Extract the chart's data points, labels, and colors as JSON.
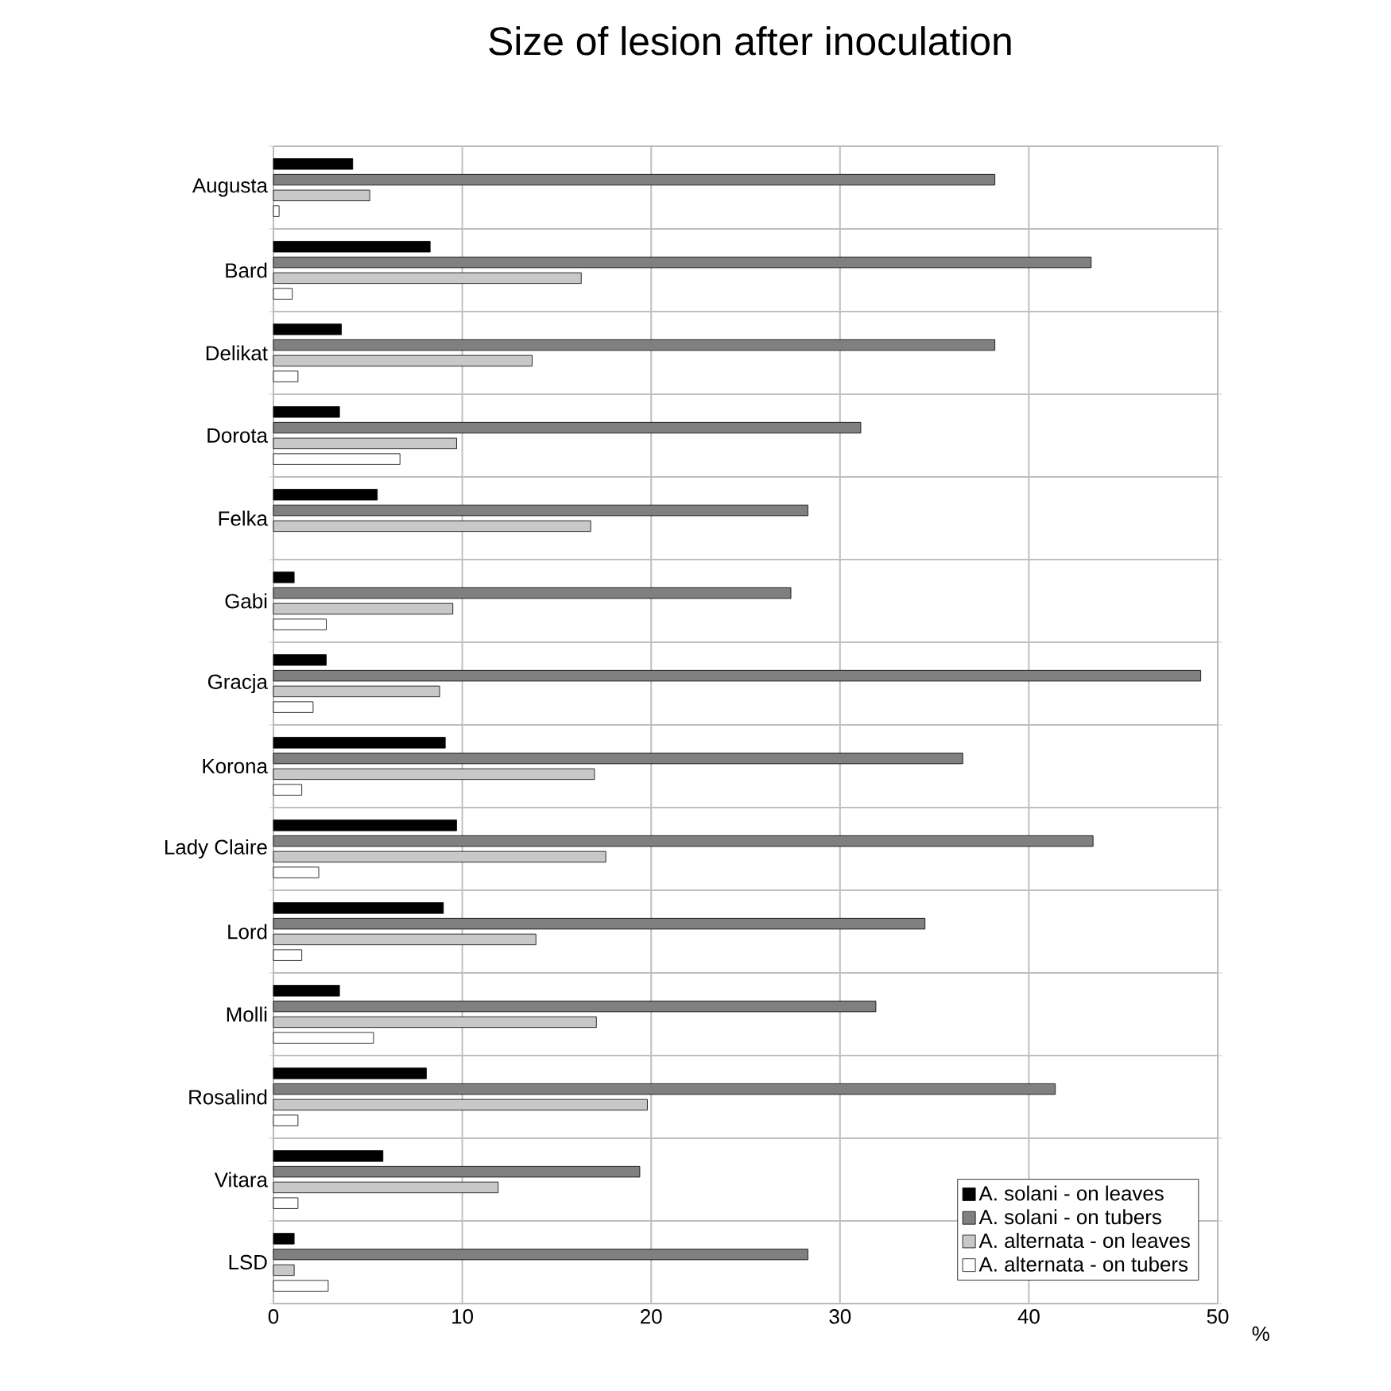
{
  "chart_data": {
    "type": "bar",
    "orientation": "horizontal",
    "title": "Size of lesion after inoculation",
    "xlabel": "%",
    "categories": [
      "Augusta",
      "Bard",
      "Delikat",
      "Dorota",
      "Felka",
      "Gabi",
      "Gracja",
      "Korona",
      "Lady Claire",
      "Lord",
      "Molli",
      "Rosalind",
      "Vitara",
      "LSD"
    ],
    "series": [
      {
        "name": "A. solani - on leaves",
        "color": "#000000",
        "values": [
          4.2,
          8.3,
          3.6,
          3.5,
          5.5,
          1.1,
          2.8,
          9.1,
          9.7,
          9.0,
          3.5,
          8.1,
          5.8,
          1.1
        ]
      },
      {
        "name": "A. solani - on tubers",
        "color": "#808080",
        "values": [
          38.2,
          43.3,
          38.2,
          31.1,
          28.3,
          27.4,
          49.1,
          36.5,
          43.4,
          34.5,
          31.9,
          41.4,
          19.4,
          28.3
        ]
      },
      {
        "name": "A. alternata - on leaves",
        "color": "#c8c8c8",
        "values": [
          5.1,
          16.3,
          13.7,
          9.7,
          16.8,
          9.5,
          8.8,
          17.0,
          17.6,
          13.9,
          17.1,
          19.8,
          11.9,
          1.1
        ]
      },
      {
        "name": "A. alternata - on tubers",
        "color": "#ffffff",
        "values": [
          0.3,
          1.0,
          1.3,
          6.7,
          null,
          2.8,
          2.1,
          1.5,
          2.4,
          1.5,
          5.3,
          1.3,
          1.3,
          2.9
        ]
      }
    ],
    "xlim": [
      0,
      50
    ],
    "xticks": [
      0,
      10,
      20,
      30,
      40,
      50
    ],
    "grid": true,
    "legend": "bottom right"
  }
}
